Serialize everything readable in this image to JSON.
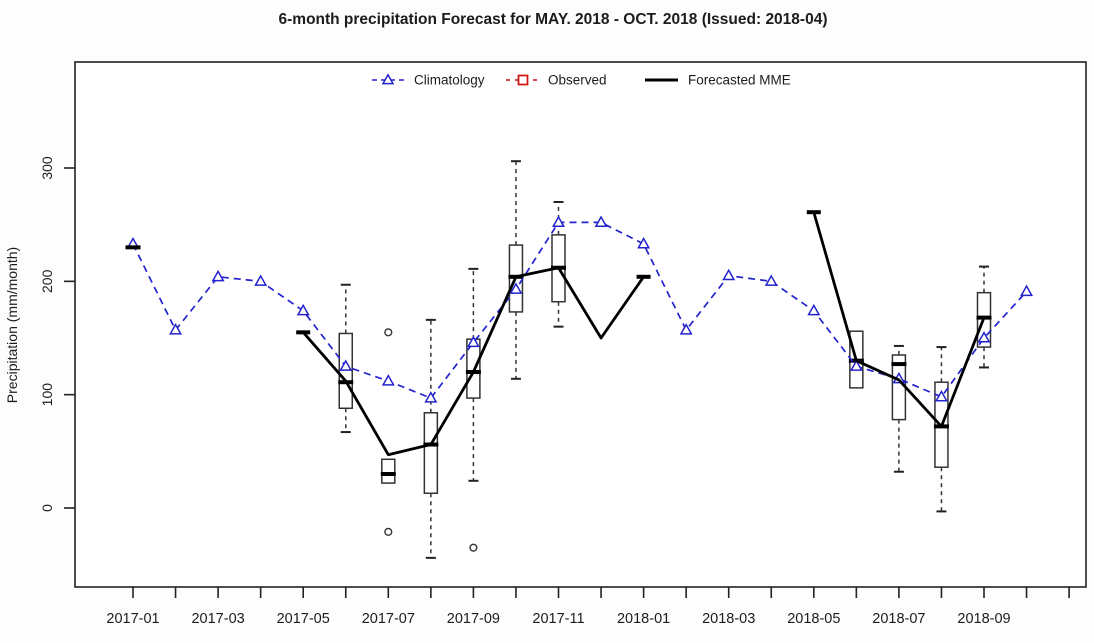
{
  "title": "6-month precipitation Forecast for MAY. 2018 - OCT. 2018 (Issued: 2018-04)",
  "legend": {
    "position": "top-center",
    "items": [
      {
        "label": "Climatology",
        "color": "#2323cd",
        "style": "dashed-line-open-triangle"
      },
      {
        "label": "Observed",
        "color": "#cc1111",
        "style": "dashed-line-open-square"
      },
      {
        "label": "Forecasted MME",
        "color": "#000000",
        "style": "solid-thick-line"
      }
    ]
  },
  "chart_data": {
    "type": "line+boxplot",
    "title": "6-month precipitation Forecast for MAY. 2018 - OCT. 2018 (Issued: 2018-04)",
    "xlabel": "",
    "ylabel": "Precipitation (mm/month)",
    "grid": false,
    "ylim": [
      -70,
      395
    ],
    "y_ticks": [
      0,
      100,
      200,
      300
    ],
    "months": [
      "2017-01",
      "2017-02",
      "2017-03",
      "2017-04",
      "2017-05",
      "2017-06",
      "2017-07",
      "2017-08",
      "2017-09",
      "2017-10",
      "2017-11",
      "2017-12",
      "2018-01",
      "2018-02",
      "2018-03",
      "2018-04",
      "2018-05",
      "2018-06",
      "2018-07",
      "2018-08",
      "2018-09",
      "2018-10"
    ],
    "x_tick_months": [
      "2017-01",
      "2017-02",
      "2017-03",
      "2017-04",
      "2017-05",
      "2017-06",
      "2017-07",
      "2017-08",
      "2017-09",
      "2017-10",
      "2017-11",
      "2017-12",
      "2018-01",
      "2018-02",
      "2018-03",
      "2018-04",
      "2018-05",
      "2018-06",
      "2018-07",
      "2018-08",
      "2018-09",
      "2018-10",
      "2018-11"
    ],
    "x_tick_labels": [
      "2017-01",
      "2017-03",
      "2017-05",
      "2017-07",
      "2017-09",
      "2017-11",
      "2018-01",
      "2018-03",
      "2018-05",
      "2018-07",
      "2018-09"
    ],
    "series": [
      {
        "name": "Climatology",
        "type": "line",
        "color": "#2323cd",
        "dashed": true,
        "marker": "open-triangle",
        "x": [
          "2017-01",
          "2017-02",
          "2017-03",
          "2017-04",
          "2017-05",
          "2017-06",
          "2017-07",
          "2017-08",
          "2017-09",
          "2017-10",
          "2017-11",
          "2017-12",
          "2018-01",
          "2018-02",
          "2018-03",
          "2018-04",
          "2018-05",
          "2018-06",
          "2018-07",
          "2018-08",
          "2018-09",
          "2018-10"
        ],
        "values": [
          233,
          157,
          204,
          200,
          174,
          125,
          112,
          97,
          146,
          193,
          252,
          252,
          233,
          157,
          205,
          200,
          174,
          125,
          114,
          98,
          150,
          191
        ]
      }
    ],
    "black_line_segments": [
      {
        "name": "mme-segment-2017",
        "color": "#000000",
        "cap_start": true,
        "cap_end": true,
        "x": [
          "2017-05",
          "2017-06",
          "2017-07",
          "2017-08",
          "2017-09",
          "2017-10",
          "2017-11",
          "2017-12",
          "2018-01"
        ],
        "values": [
          155,
          112,
          47,
          56,
          120,
          204,
          212,
          150,
          204
        ]
      },
      {
        "name": "forecasted-mme-2018",
        "color": "#000000",
        "cap_start": true,
        "cap_end": false,
        "x": [
          "2018-05",
          "2018-06",
          "2018-07",
          "2018-08",
          "2018-09"
        ],
        "values": [
          261,
          130,
          113,
          72,
          168
        ]
      }
    ],
    "standalone_marks": [
      {
        "month": "2017-01",
        "value": 230
      }
    ],
    "boxplots": [
      {
        "month": "2017-06",
        "whisker_low": 67,
        "q1": 88,
        "median": 111,
        "q3": 154,
        "whisker_high": 197,
        "outliers": []
      },
      {
        "month": "2017-07",
        "whisker_low": null,
        "q1": 22,
        "median": 30,
        "q3": 43,
        "whisker_high": null,
        "outliers": [
          155,
          -21
        ]
      },
      {
        "month": "2017-08",
        "whisker_low": -44,
        "q1": 13,
        "median": 56,
        "q3": 84,
        "whisker_high": 166,
        "outliers": []
      },
      {
        "month": "2017-09",
        "whisker_low": 24,
        "q1": 97,
        "median": 120,
        "q3": 149,
        "whisker_high": 211,
        "outliers": [
          -35
        ]
      },
      {
        "month": "2017-10",
        "whisker_low": 114,
        "q1": 173,
        "median": 204,
        "q3": 232,
        "whisker_high": 306,
        "outliers": []
      },
      {
        "month": "2017-11",
        "whisker_low": 160,
        "q1": 182,
        "median": 212,
        "q3": 241,
        "whisker_high": 270,
        "outliers": []
      },
      {
        "month": "2018-06",
        "whisker_low": null,
        "q1": 106,
        "median": 130,
        "q3": 156,
        "whisker_high": null,
        "outliers": []
      },
      {
        "month": "2018-07",
        "whisker_low": 32,
        "q1": 78,
        "median": 127,
        "q3": 135,
        "whisker_high": 143,
        "outliers": []
      },
      {
        "month": "2018-08",
        "whisker_low": -3,
        "q1": 36,
        "median": 72,
        "q3": 111,
        "whisker_high": 142,
        "outliers": []
      },
      {
        "month": "2018-09",
        "whisker_low": 124,
        "q1": 142,
        "median": 168,
        "q3": 190,
        "whisker_high": 213,
        "outliers": []
      }
    ]
  }
}
